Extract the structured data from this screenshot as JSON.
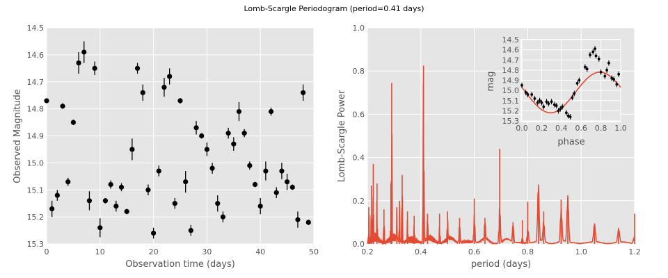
{
  "title": "Lomb-Scargle Periodogram (period=0.41 days)",
  "colors": {
    "panel_bg": "#e5e5e5",
    "grid": "#ffffff",
    "points": "#000000",
    "line": "#e24a33",
    "text": "#555555"
  },
  "chart_data": [
    {
      "type": "scatter",
      "xlabel": "Observation time (days)",
      "ylabel": "Observed Magnitude",
      "xlim": [
        0,
        50
      ],
      "ylim": [
        15.3,
        14.5
      ],
      "y_inverted": true,
      "grid": true,
      "xticks": [
        "0",
        "10",
        "20",
        "30",
        "40",
        "50"
      ],
      "yticks": [
        "14.5",
        "14.6",
        "14.7",
        "14.8",
        "14.9",
        "15.0",
        "15.1",
        "15.2",
        "15.3"
      ],
      "points": [
        {
          "x": 0,
          "y": 14.77,
          "err": 0.0
        },
        {
          "x": 1,
          "y": 15.17,
          "err": 0.03
        },
        {
          "x": 2,
          "y": 15.12,
          "err": 0.02
        },
        {
          "x": 3,
          "y": 14.79,
          "err": 0.01
        },
        {
          "x": 4,
          "y": 15.07,
          "err": 0.015
        },
        {
          "x": 5,
          "y": 14.85,
          "err": 0.01
        },
        {
          "x": 6,
          "y": 14.63,
          "err": 0.04
        },
        {
          "x": 7,
          "y": 14.59,
          "err": 0.04
        },
        {
          "x": 8,
          "y": 15.14,
          "err": 0.035
        },
        {
          "x": 9,
          "y": 14.65,
          "err": 0.025
        },
        {
          "x": 10,
          "y": 15.24,
          "err": 0.035
        },
        {
          "x": 11,
          "y": 15.14,
          "err": 0.01
        },
        {
          "x": 12,
          "y": 15.08,
          "err": 0.015
        },
        {
          "x": 13,
          "y": 15.16,
          "err": 0.02
        },
        {
          "x": 14,
          "y": 15.09,
          "err": 0.015
        },
        {
          "x": 15,
          "y": 15.18,
          "err": 0.01
        },
        {
          "x": 16,
          "y": 14.95,
          "err": 0.04
        },
        {
          "x": 17,
          "y": 14.65,
          "err": 0.02
        },
        {
          "x": 18,
          "y": 14.74,
          "err": 0.03
        },
        {
          "x": 19,
          "y": 15.1,
          "err": 0.02
        },
        {
          "x": 20,
          "y": 15.26,
          "err": 0.02
        },
        {
          "x": 21,
          "y": 15.03,
          "err": 0.02
        },
        {
          "x": 22,
          "y": 14.72,
          "err": 0.035
        },
        {
          "x": 23,
          "y": 14.68,
          "err": 0.03
        },
        {
          "x": 24,
          "y": 15.15,
          "err": 0.02
        },
        {
          "x": 25,
          "y": 14.77,
          "err": 0.01
        },
        {
          "x": 26,
          "y": 15.07,
          "err": 0.04
        },
        {
          "x": 27,
          "y": 15.25,
          "err": 0.02
        },
        {
          "x": 28,
          "y": 14.87,
          "err": 0.025
        },
        {
          "x": 29,
          "y": 14.9,
          "err": 0.01
        },
        {
          "x": 30,
          "y": 14.95,
          "err": 0.025
        },
        {
          "x": 31,
          "y": 15.02,
          "err": 0.02
        },
        {
          "x": 32,
          "y": 15.15,
          "err": 0.03
        },
        {
          "x": 33,
          "y": 15.2,
          "err": 0.02
        },
        {
          "x": 34,
          "y": 14.89,
          "err": 0.02
        },
        {
          "x": 35,
          "y": 14.93,
          "err": 0.025
        },
        {
          "x": 36,
          "y": 14.81,
          "err": 0.035
        },
        {
          "x": 37,
          "y": 14.89,
          "err": 0.015
        },
        {
          "x": 38,
          "y": 15.01,
          "err": 0.015
        },
        {
          "x": 39,
          "y": 15.08,
          "err": 0.01
        },
        {
          "x": 40,
          "y": 15.16,
          "err": 0.03
        },
        {
          "x": 41,
          "y": 15.03,
          "err": 0.035
        },
        {
          "x": 42,
          "y": 14.81,
          "err": 0.015
        },
        {
          "x": 43,
          "y": 15.11,
          "err": 0.02
        },
        {
          "x": 44,
          "y": 15.03,
          "err": 0.03
        },
        {
          "x": 45,
          "y": 15.07,
          "err": 0.03
        },
        {
          "x": 46,
          "y": 15.09,
          "err": 0.01
        },
        {
          "x": 47,
          "y": 15.21,
          "err": 0.03
        },
        {
          "x": 48,
          "y": 14.74,
          "err": 0.03
        },
        {
          "x": 49,
          "y": 15.22,
          "err": 0.01
        }
      ]
    },
    {
      "type": "line",
      "xlabel": "period (days)",
      "ylabel": "Lomb-Scargle Power",
      "xlim": [
        0.2,
        1.2
      ],
      "ylim": [
        0.0,
        1.0
      ],
      "grid": true,
      "xticks": [
        "0.2",
        "0.4",
        "0.6",
        "0.8",
        "1.0",
        "1.2"
      ],
      "yticks": [
        "0.0",
        "0.2",
        "0.4",
        "0.6",
        "0.8",
        "1.0"
      ],
      "peaks": [
        {
          "x": 0.205,
          "y": 0.17
        },
        {
          "x": 0.215,
          "y": 0.27
        },
        {
          "x": 0.222,
          "y": 0.37
        },
        {
          "x": 0.236,
          "y": 0.28
        },
        {
          "x": 0.262,
          "y": 0.16
        },
        {
          "x": 0.288,
          "y": 0.28
        },
        {
          "x": 0.291,
          "y": 0.745
        },
        {
          "x": 0.31,
          "y": 0.17
        },
        {
          "x": 0.32,
          "y": 0.2
        },
        {
          "x": 0.33,
          "y": 0.32
        },
        {
          "x": 0.35,
          "y": 0.15
        },
        {
          "x": 0.375,
          "y": 0.13
        },
        {
          "x": 0.41,
          "y": 0.825
        },
        {
          "x": 0.425,
          "y": 0.14
        },
        {
          "x": 0.47,
          "y": 0.14
        },
        {
          "x": 0.5,
          "y": 0.15
        },
        {
          "x": 0.545,
          "y": 0.12
        },
        {
          "x": 0.6,
          "y": 0.21
        },
        {
          "x": 0.64,
          "y": 0.12
        },
        {
          "x": 0.695,
          "y": 0.44
        },
        {
          "x": 0.745,
          "y": 0.1
        },
        {
          "x": 0.78,
          "y": 0.11
        },
        {
          "x": 0.8,
          "y": 0.195
        },
        {
          "x": 0.84,
          "y": 0.275
        },
        {
          "x": 0.86,
          "y": 0.15
        },
        {
          "x": 0.925,
          "y": 0.205
        },
        {
          "x": 0.95,
          "y": 0.225
        },
        {
          "x": 1.05,
          "y": 0.095
        },
        {
          "x": 1.14,
          "y": 0.075
        },
        {
          "x": 1.2,
          "y": 0.14
        }
      ]
    },
    {
      "type": "scatter",
      "inset": true,
      "xlabel": "phase",
      "ylabel": "mag",
      "xlim": [
        0.0,
        1.0
      ],
      "ylim": [
        15.3,
        14.5
      ],
      "y_inverted": true,
      "grid": true,
      "xticks": [
        "0.0",
        "0.2",
        "0.4",
        "0.6",
        "0.8",
        "1.0"
      ],
      "yticks": [
        "14.5",
        "14.6",
        "14.7",
        "14.8",
        "14.9",
        "15.0",
        "15.1",
        "15.2",
        "15.3"
      ],
      "fit_curve": {
        "mean": 15.02,
        "amplitude": 0.2,
        "min_phase": 0.29
      },
      "points": [
        {
          "x": 0.0,
          "y": 14.95
        },
        {
          "x": 0.04,
          "y": 15.02
        },
        {
          "x": 0.06,
          "y": 15.04
        },
        {
          "x": 0.1,
          "y": 15.04
        },
        {
          "x": 0.13,
          "y": 15.08
        },
        {
          "x": 0.16,
          "y": 15.12
        },
        {
          "x": 0.18,
          "y": 15.1
        },
        {
          "x": 0.2,
          "y": 15.12
        },
        {
          "x": 0.22,
          "y": 15.16
        },
        {
          "x": 0.25,
          "y": 15.11
        },
        {
          "x": 0.27,
          "y": 15.13
        },
        {
          "x": 0.3,
          "y": 15.11
        },
        {
          "x": 0.33,
          "y": 15.14
        },
        {
          "x": 0.35,
          "y": 15.15
        },
        {
          "x": 0.37,
          "y": 15.2
        },
        {
          "x": 0.39,
          "y": 15.18
        },
        {
          "x": 0.41,
          "y": 15.16
        },
        {
          "x": 0.45,
          "y": 15.22
        },
        {
          "x": 0.47,
          "y": 15.25
        },
        {
          "x": 0.49,
          "y": 15.26
        },
        {
          "x": 0.51,
          "y": 15.07
        },
        {
          "x": 0.53,
          "y": 15.03
        },
        {
          "x": 0.56,
          "y": 14.93
        },
        {
          "x": 0.58,
          "y": 14.9
        },
        {
          "x": 0.64,
          "y": 14.77
        },
        {
          "x": 0.66,
          "y": 14.79
        },
        {
          "x": 0.69,
          "y": 14.65
        },
        {
          "x": 0.72,
          "y": 14.62
        },
        {
          "x": 0.74,
          "y": 14.59
        },
        {
          "x": 0.75,
          "y": 14.66
        },
        {
          "x": 0.78,
          "y": 14.69
        },
        {
          "x": 0.8,
          "y": 14.82
        },
        {
          "x": 0.84,
          "y": 14.86
        },
        {
          "x": 0.86,
          "y": 14.8
        },
        {
          "x": 0.88,
          "y": 14.73
        },
        {
          "x": 0.91,
          "y": 14.88
        },
        {
          "x": 0.93,
          "y": 14.89
        },
        {
          "x": 0.96,
          "y": 14.94
        },
        {
          "x": 0.98,
          "y": 14.84
        }
      ]
    }
  ]
}
